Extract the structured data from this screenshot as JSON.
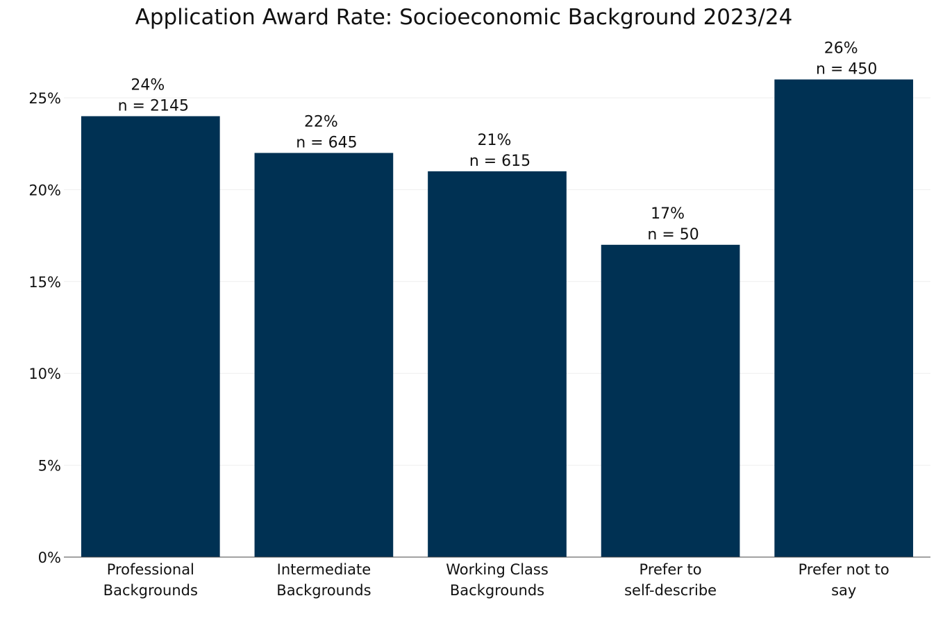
{
  "chart_data": {
    "type": "bar",
    "title": "Application Award Rate: Socioeconomic Background 2023/24",
    "xlabel": "",
    "ylabel": "",
    "categories": [
      [
        "Professional",
        "Backgrounds"
      ],
      [
        "Intermediate",
        "Backgrounds"
      ],
      [
        "Working Class",
        "Backgrounds"
      ],
      [
        "Prefer to",
        "self-describe"
      ],
      [
        "Prefer not to",
        "say"
      ]
    ],
    "values": [
      24,
      22,
      21,
      17,
      26
    ],
    "data_labels": [
      [
        "24%",
        "n = 2145"
      ],
      [
        "22%",
        "n = 645"
      ],
      [
        "21%",
        "n = 615"
      ],
      [
        "17%",
        "n = 50"
      ],
      [
        "26%",
        "n = 450"
      ]
    ],
    "ylim": [
      0,
      26
    ],
    "yticks": [
      0,
      5,
      10,
      15,
      20,
      25
    ],
    "ytick_labels": [
      "0%",
      "5%",
      "10%",
      "15%",
      "20%",
      "25%"
    ],
    "grid": true,
    "legend": "none",
    "bar_color": "#003153"
  }
}
